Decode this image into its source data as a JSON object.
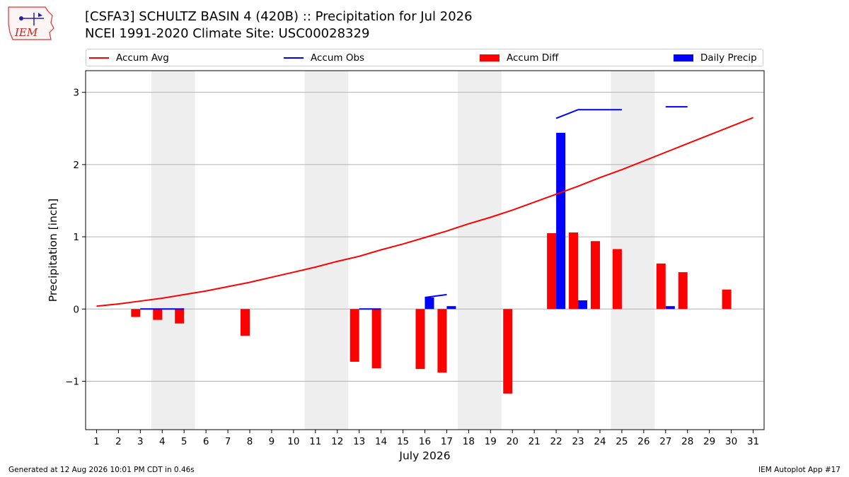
{
  "logo": {
    "name": "IEM",
    "icon": "iem-iowa-logo-icon"
  },
  "title_line1": "[CSFA3] SCHULTZ BASIN 4 (420B) :: Precipitation for Jul 2026",
  "title_line2": "NCEI 1991-2020 Climate Site: USC00028329",
  "footer": {
    "left": "Generated at 12 Aug 2026 10:01 PM CDT in 0.46s",
    "right": "IEM Autoplot App #17"
  },
  "colors": {
    "avg": "#ff0000",
    "obs": "#0000ff",
    "diff": "#ff0000",
    "daily": "#0000ff",
    "weekend": "#eeeeee"
  },
  "chart_data": {
    "type": "bar",
    "title": "[CSFA3] SCHULTZ BASIN 4 (420B) :: Precipitation for Jul 2026",
    "xlabel": "July 2026",
    "ylabel": "Precipitation [inch]",
    "xlim": [
      0.5,
      31.5
    ],
    "ylim": [
      -1.67,
      3.3
    ],
    "yticks": [
      -1,
      0,
      1,
      2,
      3
    ],
    "ytick_labels": [
      "−1",
      "0",
      "1",
      "2",
      "3"
    ],
    "x": [
      1,
      2,
      3,
      4,
      5,
      6,
      7,
      8,
      9,
      10,
      11,
      12,
      13,
      14,
      15,
      16,
      17,
      18,
      19,
      20,
      21,
      22,
      23,
      24,
      25,
      26,
      27,
      28,
      29,
      30,
      31
    ],
    "grid": "horizontal",
    "legend": {
      "placement": "top",
      "entries": [
        "Accum Avg",
        "Accum Obs",
        "Accum Diff",
        "Daily Precip"
      ]
    },
    "weekend_spans": [
      [
        3.5,
        5.5
      ],
      [
        10.5,
        12.5
      ],
      [
        17.5,
        19.5
      ],
      [
        24.5,
        26.5
      ]
    ],
    "series": [
      {
        "name": "Accum Avg",
        "kind": "line",
        "values": [
          0.04,
          0.07,
          0.11,
          0.15,
          0.2,
          0.25,
          0.31,
          0.37,
          0.44,
          0.51,
          0.58,
          0.66,
          0.73,
          0.82,
          0.9,
          0.99,
          1.08,
          1.18,
          1.27,
          1.37,
          1.48,
          1.59,
          1.7,
          1.82,
          1.93,
          2.05,
          2.17,
          2.29,
          2.41,
          2.53,
          2.65
        ]
      },
      {
        "name": "Accum Obs",
        "kind": "line",
        "values": [
          null,
          null,
          0.0,
          0.0,
          0.0,
          null,
          null,
          null,
          null,
          null,
          null,
          null,
          0.0,
          0.0,
          null,
          0.16,
          0.2,
          null,
          null,
          null,
          null,
          2.64,
          2.76,
          2.76,
          2.76,
          null,
          2.8,
          2.8,
          null,
          null,
          null
        ]
      },
      {
        "name": "Accum Diff",
        "kind": "bar",
        "values": [
          null,
          null,
          -0.11,
          -0.15,
          -0.2,
          null,
          null,
          -0.37,
          null,
          null,
          null,
          null,
          -0.73,
          -0.82,
          null,
          -0.83,
          -0.88,
          null,
          null,
          -1.17,
          null,
          1.05,
          1.06,
          0.94,
          0.83,
          null,
          0.63,
          0.51,
          null,
          0.27,
          null
        ]
      },
      {
        "name": "Daily Precip",
        "kind": "bar",
        "values": [
          null,
          null,
          null,
          null,
          null,
          null,
          null,
          null,
          null,
          null,
          null,
          null,
          null,
          null,
          null,
          0.16,
          0.04,
          null,
          null,
          null,
          null,
          2.44,
          0.12,
          null,
          null,
          null,
          0.04,
          null,
          null,
          null,
          null
        ]
      }
    ]
  }
}
